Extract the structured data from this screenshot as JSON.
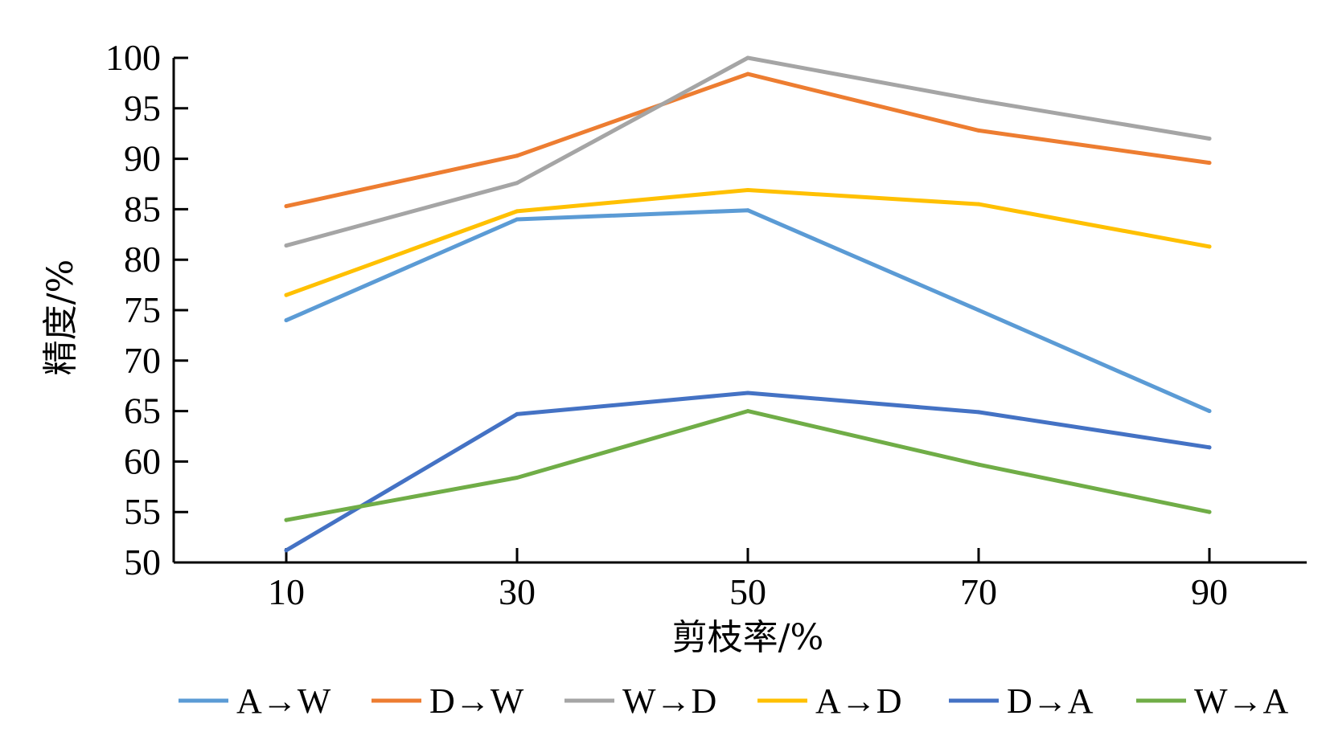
{
  "chart_data": {
    "type": "line",
    "xlabel": "剪枝率/%",
    "ylabel": "精度/%",
    "categories": [
      "10",
      "30",
      "50",
      "70",
      "90"
    ],
    "x": [
      10,
      30,
      50,
      70,
      90
    ],
    "ylim": [
      50,
      100
    ],
    "yticks": [
      "100",
      "95",
      "90",
      "85",
      "80",
      "75",
      "70",
      "65",
      "60",
      "55",
      "50"
    ],
    "grid": false,
    "legend_position": "bottom",
    "series": [
      {
        "name": "A→W",
        "color": "#5B9BD5",
        "values": [
          74.0,
          84.0,
          84.9,
          75.0,
          65.0
        ]
      },
      {
        "name": "D→W",
        "color": "#ED7D31",
        "values": [
          85.3,
          90.3,
          98.4,
          92.8,
          89.6
        ]
      },
      {
        "name": "W→D",
        "color": "#A5A5A5",
        "values": [
          81.4,
          87.6,
          100.0,
          95.8,
          92.0
        ]
      },
      {
        "name": "A→D",
        "color": "#FFC000",
        "values": [
          76.5,
          84.8,
          86.9,
          85.5,
          81.3
        ]
      },
      {
        "name": "D→A",
        "color": "#4472C4",
        "values": [
          51.2,
          64.7,
          66.8,
          64.9,
          61.4
        ]
      },
      {
        "name": "W→A",
        "color": "#70AD47",
        "values": [
          54.2,
          58.4,
          65.0,
          59.7,
          55.0
        ]
      }
    ]
  }
}
